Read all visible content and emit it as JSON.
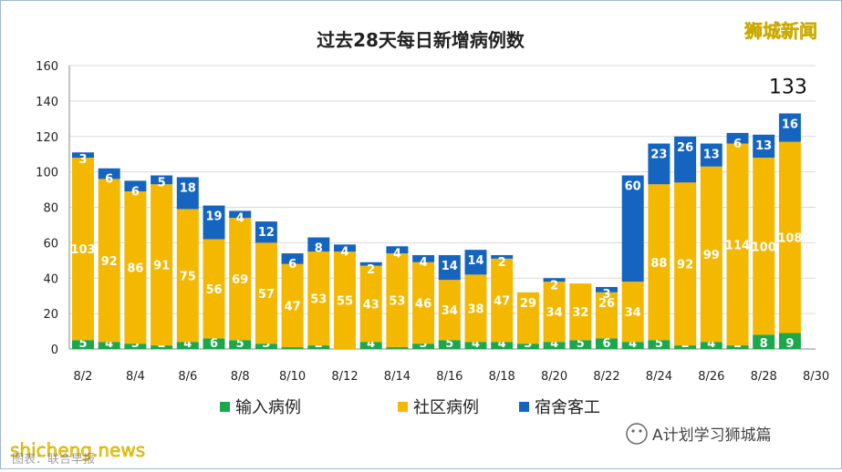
{
  "chart_data": {
    "type": "bar",
    "stacked": true,
    "title": "过去28天每日新增病例数",
    "categories": [
      "8/2",
      "8/3",
      "8/4",
      "8/5",
      "8/6",
      "8/7",
      "8/8",
      "8/9",
      "8/10",
      "8/11",
      "8/12",
      "8/13",
      "8/14",
      "8/15",
      "8/16",
      "8/17",
      "8/18",
      "8/19",
      "8/20",
      "8/21",
      "8/22",
      "8/23",
      "8/24",
      "8/25",
      "8/26",
      "8/27",
      "8/28",
      "8/29"
    ],
    "x_tick_labels": [
      "8/2",
      "8/4",
      "8/6",
      "8/8",
      "8/10",
      "8/12",
      "8/14",
      "8/16",
      "8/18",
      "8/20",
      "8/22",
      "8/24",
      "8/26",
      "8/28",
      "8/30"
    ],
    "series": [
      {
        "name": "输入病例",
        "color": "#1aa84a",
        "values": [
          5,
          4,
          3,
          2,
          4,
          6,
          5,
          3,
          1,
          2,
          0,
          4,
          1,
          3,
          5,
          4,
          4,
          3,
          4,
          5,
          6,
          4,
          5,
          2,
          4,
          2,
          8,
          9
        ]
      },
      {
        "name": "社区病例",
        "color": "#f5b800",
        "values": [
          103,
          92,
          86,
          91,
          75,
          56,
          69,
          57,
          47,
          53,
          55,
          43,
          53,
          46,
          34,
          38,
          47,
          29,
          34,
          32,
          26,
          34,
          88,
          92,
          99,
          114,
          100,
          108
        ]
      },
      {
        "name": "宿舍客工",
        "color": "#1565c0",
        "values": [
          3,
          6,
          6,
          5,
          18,
          19,
          4,
          12,
          6,
          8,
          4,
          2,
          4,
          4,
          14,
          14,
          2,
          0,
          2,
          0,
          3,
          60,
          23,
          26,
          13,
          6,
          13,
          16
        ]
      }
    ],
    "labels": [
      [
        "5",
        "103",
        "3"
      ],
      [
        "4",
        "92",
        "6"
      ],
      [
        "3",
        "86",
        "6"
      ],
      [
        "2",
        "91",
        "5"
      ],
      [
        "4",
        "75",
        "18"
      ],
      [
        "6",
        "56",
        "19"
      ],
      [
        "5",
        "69",
        "4"
      ],
      [
        "3",
        "57",
        "12"
      ],
      [
        "1",
        "47",
        "6"
      ],
      [
        "2",
        "53",
        "8"
      ],
      [
        "",
        "55",
        "4"
      ],
      [
        "4",
        "43",
        "2"
      ],
      [
        "1",
        "53",
        "4"
      ],
      [
        "3",
        "46",
        "4"
      ],
      [
        "5",
        "34",
        "14"
      ],
      [
        "4",
        "38",
        "14"
      ],
      [
        "4",
        "47",
        "2"
      ],
      [
        "3",
        "29",
        ""
      ],
      [
        "4",
        "34",
        "2"
      ],
      [
        "5",
        "32",
        ""
      ],
      [
        "6",
        "26",
        "3"
      ],
      [
        "4",
        "34",
        "60"
      ],
      [
        "5",
        "88",
        "23"
      ],
      [
        "2",
        "92",
        "26"
      ],
      [
        "4",
        "99",
        "13"
      ],
      [
        "2",
        "114",
        "6"
      ],
      [
        "8",
        "100",
        "13"
      ],
      [
        "9",
        "108",
        "16"
      ]
    ],
    "last_total_label": "133",
    "ylim": [
      0,
      160
    ],
    "yticks": [
      "0",
      "20",
      "40",
      "60",
      "80",
      "100",
      "120",
      "140",
      "160"
    ],
    "grid": true,
    "legend_placement": "bottom"
  },
  "watermarks": {
    "top_right": "狮城新闻",
    "bottom_left": "shicheng.news",
    "bottom_left_under": "图表：联合早报",
    "bottom_right": "A计划学习狮城篇"
  }
}
